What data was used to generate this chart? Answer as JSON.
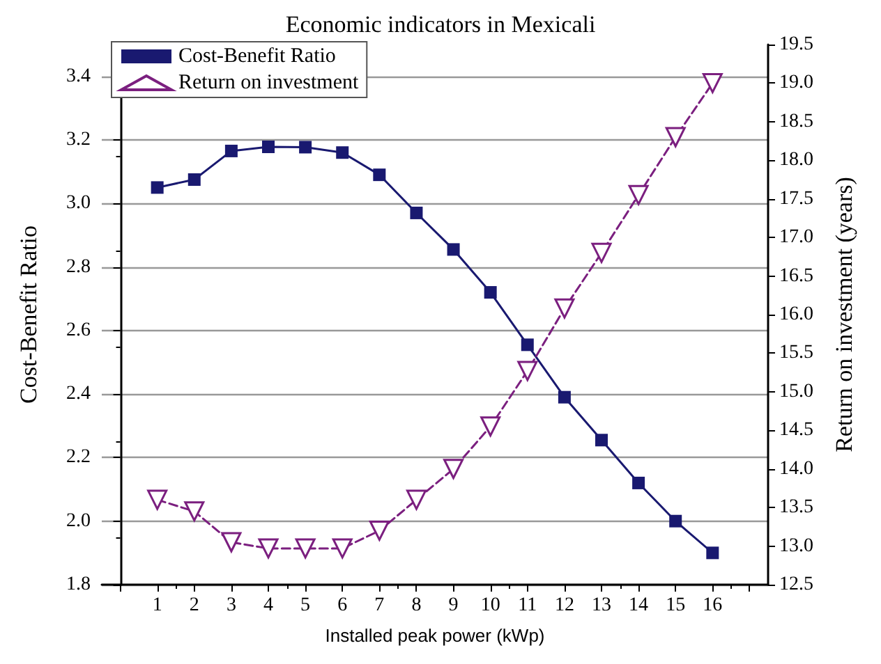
{
  "chart_data": {
    "type": "line",
    "title": "Economic indicators in Mexicali",
    "xlabel": "Installed peak power (kWp)",
    "ylabel": "Cost-Benefit Ratio",
    "y2label": "Return on investment (years)",
    "x": [
      1,
      2,
      3,
      4,
      5,
      6,
      7,
      8,
      9,
      10,
      11,
      12,
      13,
      14,
      15,
      16
    ],
    "xlim": [
      -0.5,
      17.5
    ],
    "xticks": [
      {
        "value": 0,
        "label": null
      },
      1,
      2,
      3,
      4,
      5,
      6,
      7,
      8,
      9,
      10,
      11,
      12,
      13,
      14,
      15,
      16,
      {
        "value": 17,
        "label": null
      }
    ],
    "ylim": [
      1.8,
      3.5
    ],
    "yticks": [
      1.8,
      {
        "value": 2,
        "label": "2.0"
      },
      2.2,
      2.4,
      2.6,
      2.8,
      {
        "value": 3,
        "label": "3.0"
      },
      3.2,
      3.4
    ],
    "y2lim": [
      12.5,
      19.5
    ],
    "y2ticks": [
      12.5,
      {
        "value": 13,
        "label": "13.0"
      },
      13.5,
      {
        "value": 14,
        "label": "14.0"
      },
      14.5,
      {
        "value": 15,
        "label": "15.0"
      },
      15.5,
      {
        "value": 16,
        "label": "16.0"
      },
      16.5,
      {
        "value": 17,
        "label": "17.0"
      },
      17.5,
      {
        "value": 18,
        "label": "18.0"
      },
      18.5,
      {
        "value": 19,
        "label": "19.0"
      },
      19.5
    ],
    "series": [
      {
        "name": "Cost-Benefit Ratio",
        "color": "#191970",
        "marker": "square",
        "line_style": "solid",
        "values": [
          3.05,
          3.075,
          3.165,
          3.178,
          3.177,
          3.16,
          3.09,
          2.97,
          2.855,
          2.72,
          2.555,
          2.39,
          2.255,
          2.12,
          2.0,
          1.9
        ]
      },
      {
        "name": "Return on investment",
        "color": "#7b1f7f",
        "marker": "triangle",
        "line_style": "dashed",
        "axis": "y2",
        "values": [
          13.6,
          13.45,
          13.05,
          12.97,
          12.97,
          12.97,
          13.2,
          13.6,
          14.0,
          14.55,
          15.27,
          16.08,
          16.8,
          17.55,
          18.3,
          19.0
        ]
      }
    ],
    "grid": "y",
    "legend": "top left"
  }
}
